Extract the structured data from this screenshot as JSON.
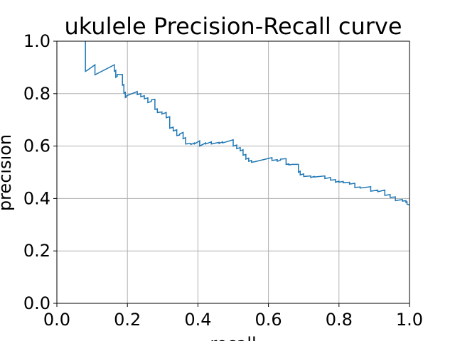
{
  "chart_data": {
    "type": "line",
    "title": "ukulele Precision-Recall curve",
    "xlabel": "recall",
    "ylabel": "precision",
    "xlim": [
      0.0,
      1.0
    ],
    "ylim": [
      0.0,
      1.0
    ],
    "x_ticks": [
      "0.0",
      "0.2",
      "0.4",
      "0.6",
      "0.8",
      "1.0"
    ],
    "y_ticks": [
      "0.0",
      "0.2",
      "0.4",
      "0.6",
      "0.8",
      "1.0"
    ],
    "grid": true,
    "line_color": "#1f77b4",
    "series": [
      {
        "x": [
          0.081,
          0.081,
          0.085,
          0.108,
          0.108,
          0.163,
          0.163,
          0.167,
          0.167,
          0.171,
          0.171,
          0.186,
          0.186,
          0.19,
          0.19,
          0.194,
          0.194,
          0.198,
          0.198,
          0.228,
          0.228,
          0.238,
          0.238,
          0.248,
          0.248,
          0.258,
          0.258,
          0.268,
          0.268,
          0.278,
          0.278,
          0.285,
          0.285,
          0.298,
          0.298,
          0.31,
          0.31,
          0.32,
          0.32,
          0.33,
          0.33,
          0.34,
          0.34,
          0.348,
          0.348,
          0.358,
          0.358,
          0.365,
          0.365,
          0.38,
          0.38,
          0.39,
          0.39,
          0.405,
          0.405,
          0.422,
          0.422,
          0.438,
          0.438,
          0.46,
          0.46,
          0.47,
          0.47,
          0.5,
          0.5,
          0.51,
          0.51,
          0.52,
          0.52,
          0.528,
          0.528,
          0.536,
          0.536,
          0.544,
          0.544,
          0.552,
          0.552,
          0.56,
          0.56,
          0.61,
          0.61,
          0.625,
          0.625,
          0.634,
          0.634,
          0.65,
          0.65,
          0.658,
          0.658,
          0.668,
          0.668,
          0.685,
          0.685,
          0.69,
          0.69,
          0.7,
          0.7,
          0.72,
          0.72,
          0.73,
          0.73,
          0.76,
          0.76,
          0.776,
          0.776,
          0.79,
          0.79,
          0.8,
          0.8,
          0.812,
          0.812,
          0.83,
          0.83,
          0.845,
          0.845,
          0.86,
          0.86,
          0.89,
          0.89,
          0.91,
          0.91,
          0.93,
          0.93,
          0.945,
          0.945,
          0.96,
          0.96,
          0.98,
          0.98,
          0.99,
          0.99,
          0.993,
          0.993,
          1.0
        ],
        "y": [
          1.0,
          0.885,
          0.888,
          0.91,
          0.872,
          0.91,
          0.885,
          0.889,
          0.862,
          0.866,
          0.873,
          0.873,
          0.832,
          0.835,
          0.802,
          0.805,
          0.785,
          0.788,
          0.792,
          0.808,
          0.796,
          0.8,
          0.788,
          0.792,
          0.78,
          0.784,
          0.766,
          0.77,
          0.776,
          0.778,
          0.74,
          0.742,
          0.728,
          0.73,
          0.722,
          0.728,
          0.708,
          0.712,
          0.668,
          0.672,
          0.658,
          0.662,
          0.64,
          0.642,
          0.646,
          0.652,
          0.628,
          0.632,
          0.608,
          0.61,
          0.606,
          0.612,
          0.608,
          0.62,
          0.6,
          0.612,
          0.608,
          0.616,
          0.608,
          0.614,
          0.61,
          0.616,
          0.612,
          0.624,
          0.6,
          0.604,
          0.59,
          0.594,
          0.582,
          0.586,
          0.565,
          0.568,
          0.55,
          0.554,
          0.542,
          0.545,
          0.538,
          0.54,
          0.54,
          0.556,
          0.545,
          0.548,
          0.542,
          0.546,
          0.55,
          0.552,
          0.53,
          0.532,
          0.528,
          0.53,
          0.53,
          0.53,
          0.5,
          0.504,
          0.49,
          0.494,
          0.484,
          0.486,
          0.48,
          0.484,
          0.482,
          0.486,
          0.476,
          0.48,
          0.47,
          0.472,
          0.462,
          0.466,
          0.462,
          0.465,
          0.46,
          0.462,
          0.455,
          0.458,
          0.442,
          0.444,
          0.44,
          0.445,
          0.428,
          0.432,
          0.426,
          0.432,
          0.412,
          0.415,
          0.404,
          0.406,
          0.392,
          0.396,
          0.39,
          0.392,
          0.385,
          0.387,
          0.378,
          0.376
        ]
      }
    ]
  }
}
